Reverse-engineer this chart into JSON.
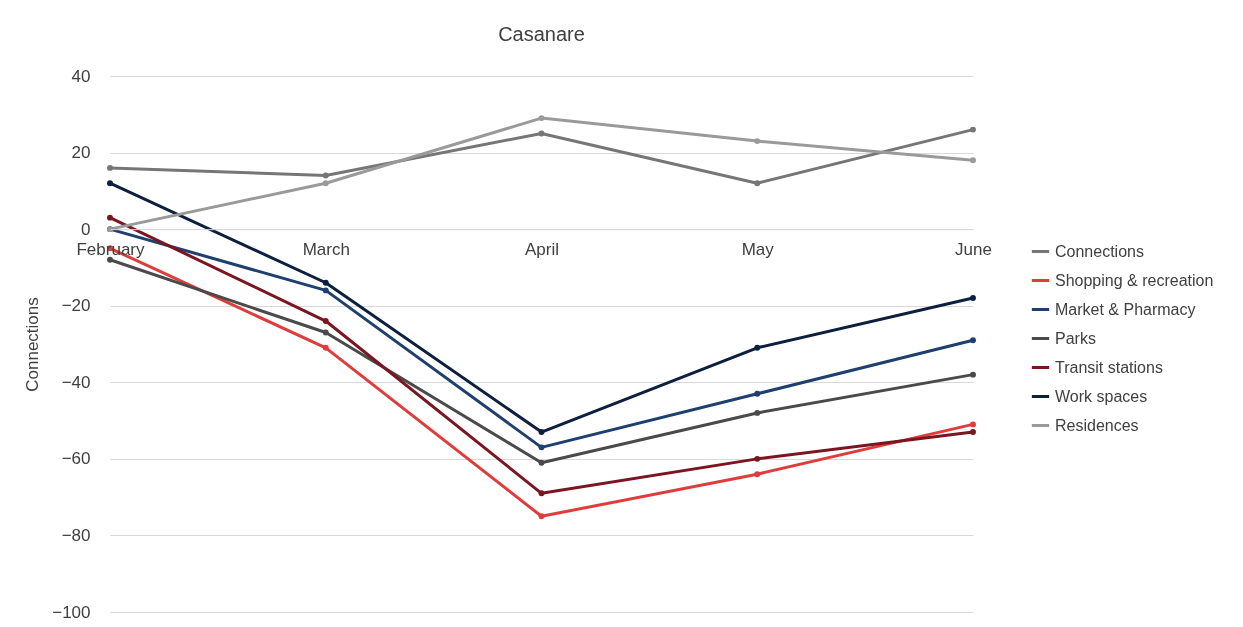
{
  "chart_data": {
    "type": "line",
    "title": "Casanare",
    "ylabel": "Connections",
    "categories": [
      "February",
      "March",
      "April",
      "May",
      "June"
    ],
    "ylim": [
      -100,
      40
    ],
    "yticks": [
      -100,
      -80,
      -60,
      -40,
      -20,
      0,
      20,
      40
    ],
    "grid": "y",
    "legend": "right",
    "marker": "circle",
    "series": [
      {
        "name": "Connections",
        "color": "#767676",
        "values": [
          16,
          14,
          25,
          12,
          26
        ]
      },
      {
        "name": "Shopping & recreation",
        "color": "#e03c3c",
        "values": [
          -5,
          -31,
          -75,
          -64,
          -51
        ]
      },
      {
        "name": "Market & Pharmacy",
        "color": "#1f3f6e",
        "values": [
          0,
          -16,
          -57,
          -43,
          -29
        ]
      },
      {
        "name": "Parks",
        "color": "#4a4a4a",
        "values": [
          -8,
          -27,
          -61,
          -48,
          -38
        ]
      },
      {
        "name": "Transit stations",
        "color": "#7b1520",
        "values": [
          3,
          -24,
          -69,
          -60,
          -53
        ]
      },
      {
        "name": "Work spaces",
        "color": "#0c1f3f",
        "values": [
          12,
          -14,
          -53,
          -31,
          -18
        ]
      },
      {
        "name": "Residences",
        "color": "#9a9a9a",
        "values": [
          0,
          12,
          29,
          23,
          18
        ]
      }
    ]
  }
}
